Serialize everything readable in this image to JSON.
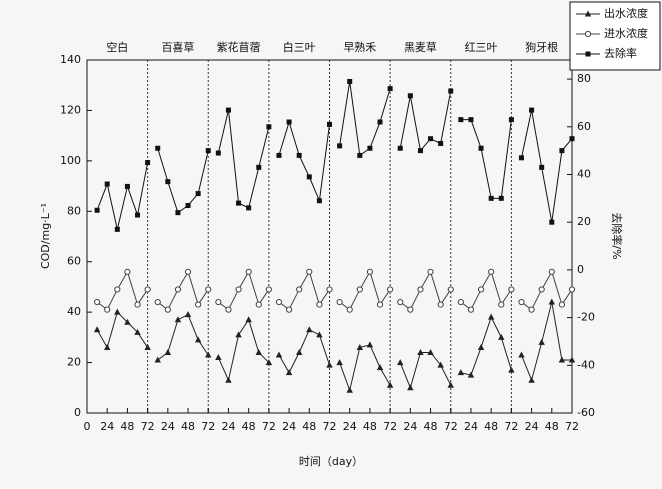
{
  "chart_data": {
    "type": "line",
    "x_label": "时间（day）",
    "y_label": "COD/mg·L⁻¹",
    "y2_label": "去除率/%",
    "panels": [
      "空白",
      "百喜草",
      "紫花苜蓿",
      "白三叶",
      "早熟禾",
      "黑麦草",
      "红三叶",
      "狗牙根"
    ],
    "x": [
      12,
      24,
      36,
      48,
      60,
      72
    ],
    "xlim": [
      0,
      72
    ],
    "xticks": [
      0,
      24,
      48,
      72
    ],
    "ylim": [
      0,
      140
    ],
    "yticks": [
      0,
      20,
      40,
      60,
      80,
      100,
      120,
      140
    ],
    "y2lim": [
      -60,
      88
    ],
    "y2ticks": [
      -60,
      -40,
      -20,
      0,
      20,
      40,
      60,
      80
    ],
    "series": [
      {
        "name": "出水浓度",
        "color": "#222222",
        "marker": "triangle",
        "values": [
          [
            33,
            26,
            40,
            36,
            32,
            26
          ],
          [
            21,
            24,
            37,
            39,
            29,
            23
          ],
          [
            22,
            13,
            31,
            37,
            24,
            20
          ],
          [
            23,
            16,
            24,
            33,
            31,
            19
          ],
          [
            20,
            9,
            26,
            27,
            18,
            11
          ],
          [
            20,
            10,
            24,
            24,
            19,
            11
          ],
          [
            16,
            15,
            26,
            38,
            30,
            17
          ],
          [
            23,
            13,
            28,
            44,
            21,
            21
          ]
        ]
      },
      {
        "name": "进水浓度",
        "color": "#444444",
        "marker": "circle",
        "values": [
          [
            44,
            41,
            49,
            56,
            43,
            49
          ],
          [
            44,
            41,
            49,
            56,
            43,
            49
          ],
          [
            44,
            41,
            49,
            56,
            43,
            49
          ],
          [
            44,
            41,
            49,
            56,
            43,
            49
          ],
          [
            44,
            41,
            49,
            56,
            43,
            49
          ],
          [
            44,
            41,
            49,
            56,
            43,
            49
          ],
          [
            44,
            41,
            49,
            56,
            43,
            49
          ],
          [
            44,
            41,
            49,
            56,
            43,
            49
          ]
        ]
      },
      {
        "name": "去除率",
        "color": "#111111",
        "marker": "square",
        "axis": "y2",
        "values": [
          [
            25,
            36,
            17,
            35,
            23,
            45
          ],
          [
            51,
            37,
            24,
            27,
            32,
            50
          ],
          [
            49,
            67,
            28,
            26,
            43,
            60
          ],
          [
            48,
            62,
            48,
            39,
            29,
            61
          ],
          [
            52,
            79,
            48,
            51,
            62,
            76
          ],
          [
            51,
            73,
            50,
            55,
            53,
            75
          ],
          [
            63,
            63,
            51,
            30,
            30,
            63
          ],
          [
            47,
            67,
            43,
            20,
            50,
            55
          ]
        ]
      }
    ]
  }
}
